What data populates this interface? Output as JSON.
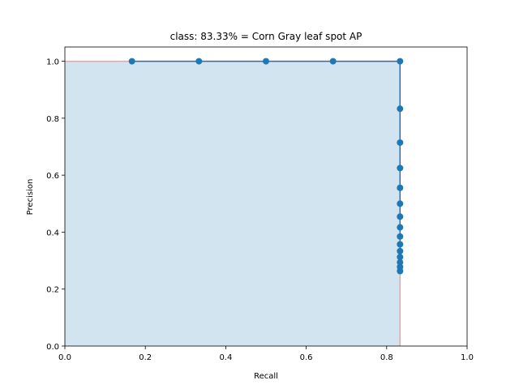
{
  "chart_data": {
    "type": "line",
    "title": "class: 83.33% = Corn Gray leaf spot AP",
    "xlabel": "Recall",
    "ylabel": "Precision",
    "xlim": [
      0.0,
      1.0
    ],
    "ylim": [
      0.0,
      1.05
    ],
    "xticks": [
      "0.0",
      "0.2",
      "0.4",
      "0.6",
      "0.8",
      "1.0"
    ],
    "yticks": [
      "0.0",
      "0.2",
      "0.4",
      "0.6",
      "0.8",
      "1.0"
    ],
    "grid": false,
    "legend": "none",
    "series": [
      {
        "x": [
          0.1667,
          0.3333,
          0.5,
          0.6667,
          0.8333,
          0.8333,
          0.8333,
          0.8333,
          0.8333,
          0.8333,
          0.8333,
          0.8333,
          0.8333,
          0.8333,
          0.8333,
          0.8333,
          0.8333,
          0.8333,
          0.8333
        ],
        "y": [
          1.0,
          1.0,
          1.0,
          1.0,
          1.0,
          0.8333,
          0.7143,
          0.625,
          0.5556,
          0.5,
          0.4545,
          0.4167,
          0.3846,
          0.3571,
          0.3333,
          0.3125,
          0.2941,
          0.2778,
          0.2632
        ],
        "color": "#1f77b4"
      }
    ],
    "area": {
      "x": [
        0.0,
        0.8333,
        0.8333
      ],
      "y": [
        1.0,
        1.0,
        0.0
      ],
      "fill": "#1f77b4",
      "fill_opacity": 0.2,
      "edge_color": "#f4a0a0"
    }
  }
}
